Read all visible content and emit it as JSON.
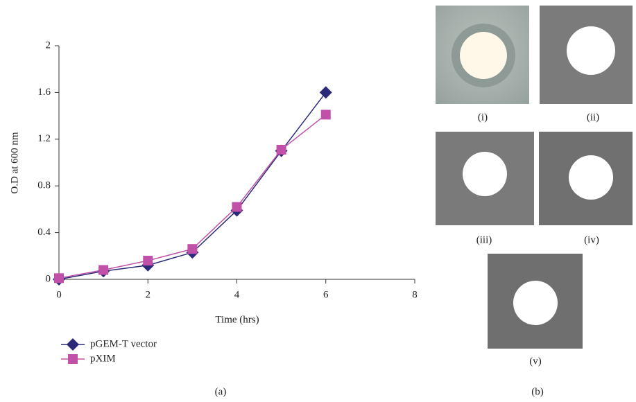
{
  "chart_data": {
    "type": "line",
    "xlabel": "Time (hrs)",
    "ylabel": "O.D at 600 nm",
    "x": [
      0,
      1,
      2,
      3,
      4,
      5,
      6
    ],
    "series": [
      {
        "name": "pGEM-T vector",
        "color": "#2b2a7a",
        "marker": "diamond",
        "values": [
          0,
          0.07,
          0.12,
          0.23,
          0.59,
          1.1,
          1.6
        ]
      },
      {
        "name": "pXIM",
        "color": "#c050a8",
        "marker": "square",
        "values": [
          0.01,
          0.08,
          0.16,
          0.26,
          0.62,
          1.11,
          1.41
        ]
      }
    ],
    "xlim": [
      0,
      8
    ],
    "xticks": [
      0,
      2,
      4,
      6,
      8
    ],
    "ylim": [
      0,
      2
    ],
    "yticks": [
      0,
      0.4,
      0.8,
      1.2,
      1.6,
      2
    ],
    "grid": false
  },
  "figure": {
    "label_a": "(a)",
    "label_b": "(b)",
    "photo_labels": [
      "(i)",
      "(ii)",
      "(iii)",
      "(iv)",
      "(v)"
    ]
  }
}
